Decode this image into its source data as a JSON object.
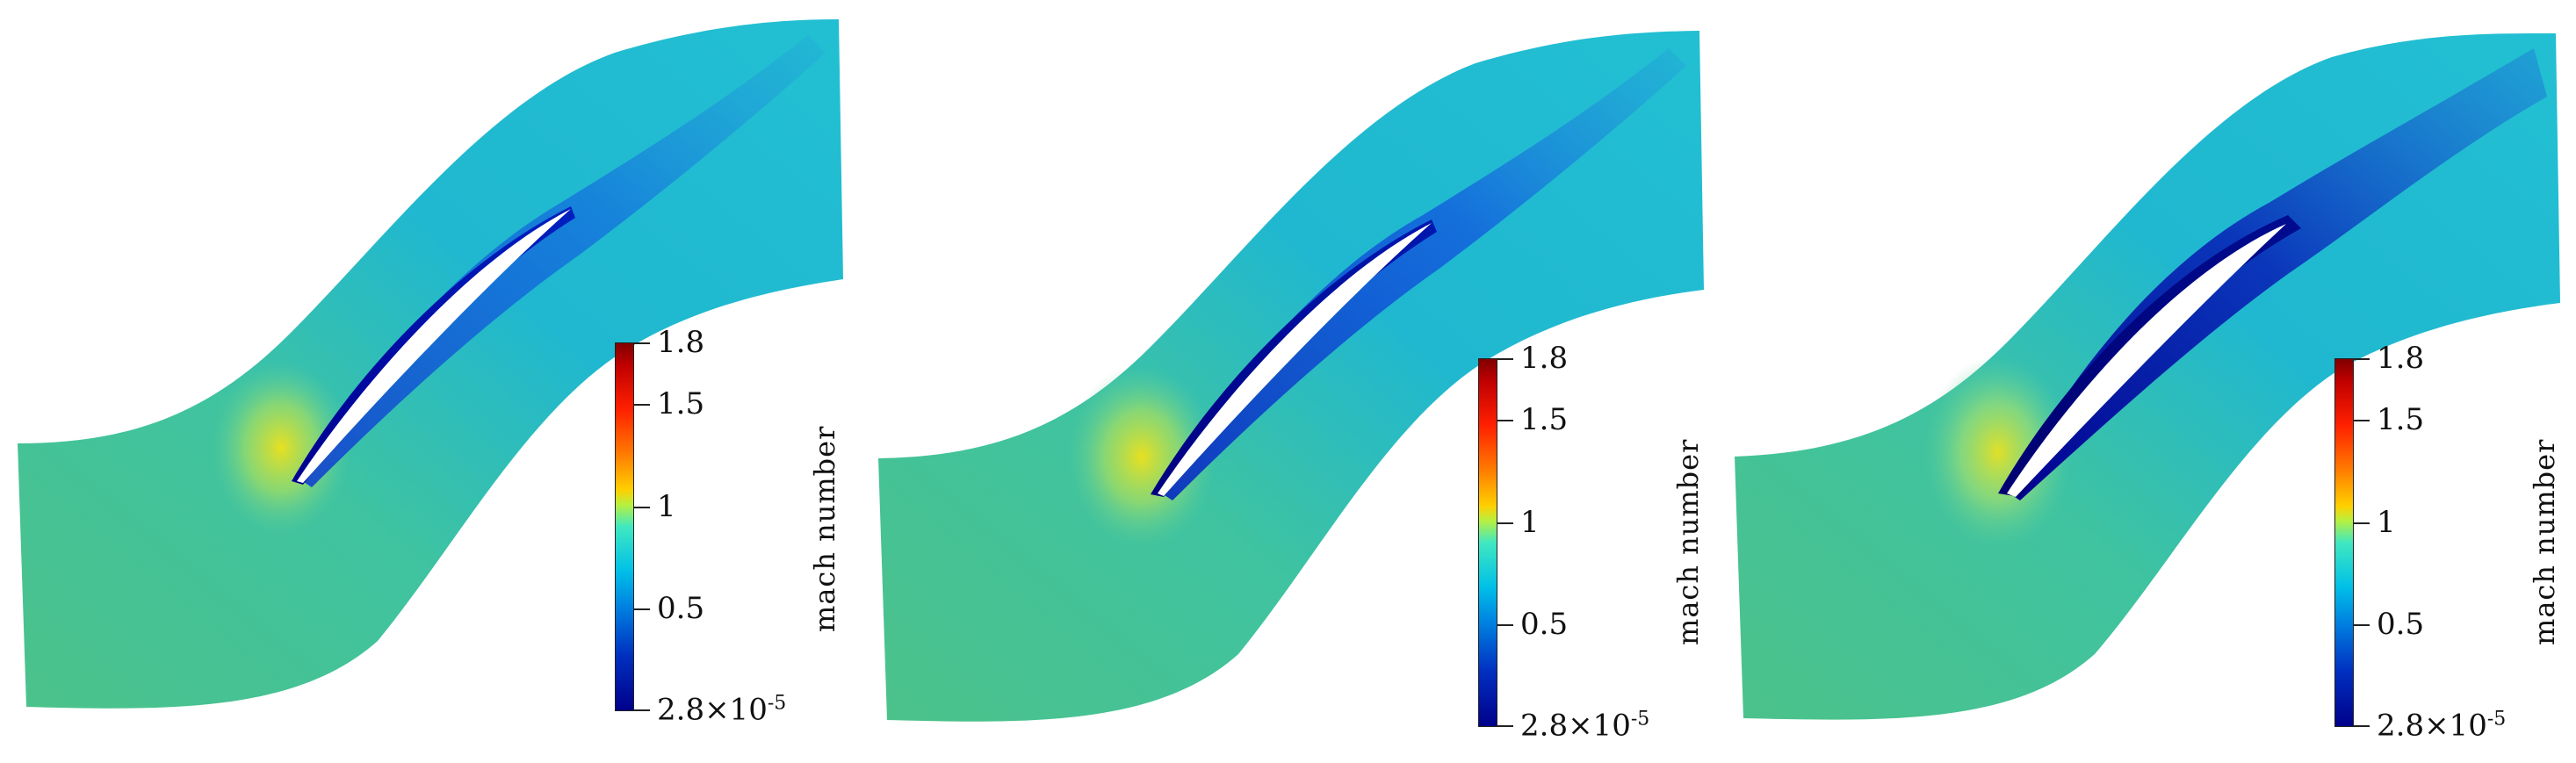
{
  "panels": [
    {
      "id": "panel-1"
    },
    {
      "id": "panel-2"
    },
    {
      "id": "panel-3"
    }
  ],
  "colorbar": {
    "label": "mach number",
    "ticks": [
      {
        "value": 1.8,
        "text": "1.8"
      },
      {
        "value": 1.5,
        "text": "1.5"
      },
      {
        "value": 1.0,
        "text": "1"
      },
      {
        "value": 0.5,
        "text": "0.5"
      },
      {
        "value": 2.8e-05,
        "text": "2.8×10",
        "exp": "-5"
      }
    ],
    "min": 2.8e-05,
    "max": 1.8,
    "colors": {
      "max": "#800000",
      "mid": "#40e8c0",
      "min": "#00008a",
      "field_base": "#2ec4b6"
    }
  }
}
